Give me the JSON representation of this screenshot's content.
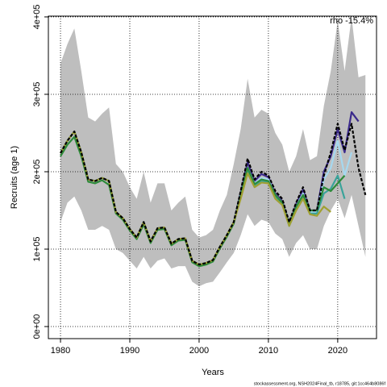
{
  "chart_data": {
    "type": "line",
    "xlabel": "Years",
    "ylabel": "Recruits (age 1)",
    "annotation": "rho -15.4%",
    "footer": "stockassessment.org, NSH2024Final_tb, r18785, git:1cc464b8086f",
    "x": [
      1980,
      1981,
      1982,
      1983,
      1984,
      1985,
      1986,
      1987,
      1988,
      1989,
      1990,
      1991,
      1992,
      1993,
      1994,
      1995,
      1996,
      1997,
      1998,
      1999,
      2000,
      2001,
      2002,
      2003,
      2004,
      2005,
      2006,
      2007,
      2008,
      2009,
      2010,
      2011,
      2012,
      2013,
      2014,
      2015,
      2016,
      2017,
      2018,
      2019,
      2020,
      2021,
      2022,
      2023,
      2024
    ],
    "band_color": "#bebebe",
    "ci_upper": [
      340000,
      365000,
      385000,
      330000,
      270000,
      265000,
      275000,
      283000,
      210000,
      200000,
      180000,
      165000,
      200000,
      160000,
      185000,
      185000,
      150000,
      160000,
      168000,
      125000,
      115000,
      118000,
      125000,
      150000,
      170000,
      210000,
      255000,
      320000,
      270000,
      280000,
      275000,
      250000,
      235000,
      200000,
      220000,
      255000,
      215000,
      220000,
      285000,
      330000,
      395000,
      330000,
      400000,
      322000,
      325000
    ],
    "ci_lower": [
      135000,
      160000,
      168000,
      150000,
      125000,
      125000,
      130000,
      125000,
      100000,
      95000,
      85000,
      75000,
      90000,
      75000,
      85000,
      88000,
      75000,
      78000,
      78000,
      58000,
      52000,
      56000,
      58000,
      70000,
      83000,
      95000,
      118000,
      145000,
      130000,
      138000,
      135000,
      120000,
      113000,
      90000,
      108000,
      118000,
      100000,
      100000,
      130000,
      150000,
      165000,
      140000,
      170000,
      130000,
      90000
    ],
    "series": [
      {
        "color": "#3b2a8c",
        "values": [
          224000,
          240000,
          252000,
          225000,
          190000,
          188000,
          192000,
          188000,
          148000,
          140000,
          126000,
          115000,
          135000,
          110000,
          127000,
          128000,
          107000,
          113000,
          114000,
          85000,
          80000,
          82000,
          86000,
          103000,
          118000,
          135000,
          173000,
          212000,
          188000,
          197000,
          193000,
          172000,
          162000,
          133000,
          158000,
          177000,
          150000,
          150000,
          200000,
          220000,
          255000,
          225000,
          277000,
          265000,
          null
        ]
      },
      {
        "color": "#a6d8ef",
        "values": [
          224000,
          240000,
          252000,
          225000,
          190000,
          188000,
          192000,
          188000,
          148000,
          140000,
          126000,
          115000,
          135000,
          110000,
          127000,
          128000,
          107000,
          113000,
          114000,
          85000,
          80000,
          82000,
          86000,
          103000,
          118000,
          135000,
          170000,
          205000,
          185000,
          192000,
          190000,
          170000,
          160000,
          132000,
          155000,
          172000,
          148000,
          148000,
          190000,
          205000,
          240000,
          195000,
          225000,
          null,
          null
        ]
      },
      {
        "color": "#3aa39a",
        "values": [
          224000,
          240000,
          252000,
          225000,
          190000,
          188000,
          192000,
          188000,
          148000,
          140000,
          126000,
          115000,
          135000,
          110000,
          127000,
          128000,
          107000,
          113000,
          114000,
          85000,
          80000,
          82000,
          86000,
          103000,
          118000,
          135000,
          168000,
          200000,
          182000,
          188000,
          186000,
          168000,
          158000,
          130000,
          152000,
          168000,
          146000,
          146000,
          172000,
          178000,
          195000,
          165000,
          null,
          null,
          null
        ]
      },
      {
        "color": "#2e8b3a",
        "values": [
          220000,
          235000,
          245000,
          220000,
          187000,
          185000,
          189000,
          183000,
          146000,
          138000,
          124000,
          113000,
          132000,
          108000,
          125000,
          126000,
          105000,
          111000,
          112000,
          83000,
          78000,
          80000,
          84000,
          101000,
          116000,
          133000,
          170000,
          205000,
          184000,
          190000,
          188000,
          170000,
          160000,
          132000,
          155000,
          170000,
          150000,
          150000,
          180000,
          175000,
          185000,
          195000,
          null,
          null,
          null
        ]
      },
      {
        "color": "#a0a032",
        "values": [
          224000,
          240000,
          252000,
          225000,
          190000,
          188000,
          192000,
          188000,
          148000,
          140000,
          126000,
          115000,
          135000,
          110000,
          127000,
          128000,
          107000,
          113000,
          114000,
          85000,
          80000,
          82000,
          86000,
          103000,
          118000,
          135000,
          165000,
          198000,
          180000,
          186000,
          185000,
          165000,
          157000,
          130000,
          150000,
          165000,
          145000,
          143000,
          155000,
          148000,
          null,
          null,
          null,
          null,
          null
        ]
      },
      {
        "color": "#000000",
        "dashed": true,
        "values": [
          224000,
          240000,
          252000,
          225000,
          190000,
          188000,
          192000,
          188000,
          148000,
          140000,
          126000,
          115000,
          135000,
          110000,
          127000,
          128000,
          107000,
          113000,
          114000,
          85000,
          80000,
          82000,
          86000,
          103000,
          118000,
          135000,
          175000,
          217000,
          190000,
          200000,
          195000,
          175000,
          165000,
          135000,
          160000,
          180000,
          150000,
          150000,
          195000,
          225000,
          262000,
          228000,
          262000,
          205000,
          170000
        ]
      }
    ],
    "xlim": [
      1978.25,
      2025.6
    ],
    "xticks": [
      1980,
      1990,
      2000,
      2010,
      2020
    ],
    "ylim": [
      -15600,
      401000
    ],
    "yticks": [
      {
        "value": 0,
        "label": "0e+00"
      },
      {
        "value": 100000,
        "label": "1e+05"
      },
      {
        "value": 200000,
        "label": "2e+05"
      },
      {
        "value": 300000,
        "label": "3e+05"
      },
      {
        "value": 400000,
        "label": "4e+05"
      }
    ],
    "grid": true
  }
}
